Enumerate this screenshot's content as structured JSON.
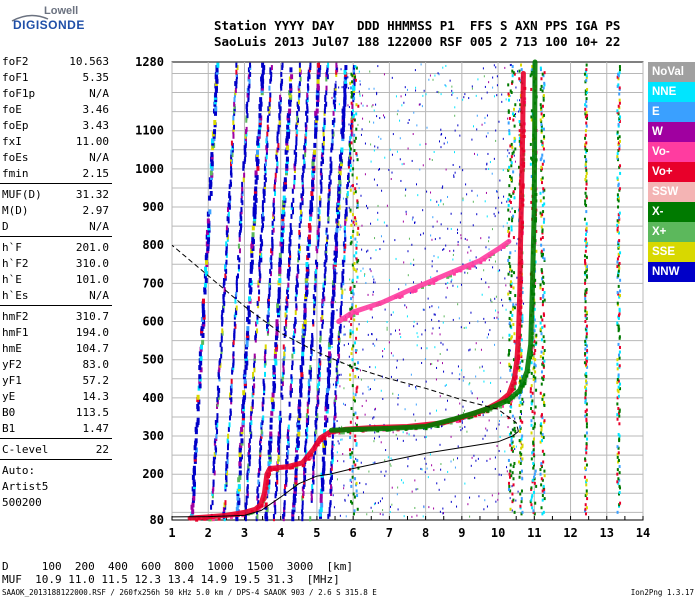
{
  "logo": {
    "line1": "Lowell",
    "line2": "DIGISONDE"
  },
  "header": {
    "line1": "Station YYYY DAY   DDD HHMMSS P1  FFS S AXN PPS IGA PS",
    "line2": "SaoLuis 2013 Jul07 188 122000 RSF 005 2 713 100 10+ 22"
  },
  "parameters": [
    {
      "group": [
        {
          "name": "foF2",
          "value": "10.563"
        },
        {
          "name": "foF1",
          "value": "5.35"
        },
        {
          "name": "foF1p",
          "value": "N/A"
        },
        {
          "name": "foE",
          "value": "3.46"
        },
        {
          "name": "foEp",
          "value": "3.43"
        },
        {
          "name": "fxI",
          "value": "11.00"
        },
        {
          "name": "foEs",
          "value": "N/A"
        },
        {
          "name": "fmin",
          "value": "2.15"
        }
      ]
    },
    {
      "group": [
        {
          "name": "MUF(D)",
          "value": "31.32"
        },
        {
          "name": "M(D)",
          "value": "2.97"
        },
        {
          "name": "D",
          "value": "N/A"
        }
      ]
    },
    {
      "group": [
        {
          "name": "h`F",
          "value": "201.0"
        },
        {
          "name": "h`F2",
          "value": "310.0"
        },
        {
          "name": "h`E",
          "value": "101.0"
        },
        {
          "name": "h`Es",
          "value": "N/A"
        }
      ]
    },
    {
      "group": [
        {
          "name": "hmF2",
          "value": "310.7"
        },
        {
          "name": "hmF1",
          "value": "194.0"
        },
        {
          "name": "hmE",
          "value": "104.7"
        },
        {
          "name": "yF2",
          "value": "83.0"
        },
        {
          "name": "yF1",
          "value": "57.2"
        },
        {
          "name": "yE",
          "value": "14.3"
        },
        {
          "name": "B0",
          "value": "113.5"
        },
        {
          "name": "B1",
          "value": "1.47"
        }
      ]
    },
    {
      "group": [
        {
          "name": "C-level",
          "value": "22"
        }
      ]
    }
  ],
  "autoscaling": {
    "line1": "Auto:",
    "line2": "Artist5",
    "line3": "500200"
  },
  "legend": [
    {
      "label": "NoVal",
      "color": "#a0a0a0"
    },
    {
      "label": "NNE",
      "color": "#00e5ff"
    },
    {
      "label": "E",
      "color": "#3aa0ff"
    },
    {
      "label": "W",
      "color": "#a000a0"
    },
    {
      "label": "Vo-",
      "color": "#ff3ca0"
    },
    {
      "label": "Vo+",
      "color": "#e8002a"
    },
    {
      "label": "SSW",
      "color": "#f4b4b4"
    },
    {
      "label": "X-",
      "color": "#007a00"
    },
    {
      "label": "X+",
      "color": "#5cb85c"
    },
    {
      "label": "SSE",
      "color": "#d8d800"
    },
    {
      "label": "NNW",
      "color": "#0000c8"
    }
  ],
  "muf_table": {
    "line1": "D     100  200  400  600  800  1000  1500  3000  [km]",
    "line2": "MUF  10.9 11.0 11.5 12.3 13.4 14.9 19.5 31.3  [MHz]"
  },
  "footer": {
    "left": "SAAOK_2013188122000.RSF / 260fx256h 50 kHz 5.0 km / DPS-4 SAAOK 903 / 2.6 S 315.8 E",
    "right": "Ion2Png 1.3.17"
  },
  "chart_data": {
    "type": "scatter",
    "title": "",
    "xlabel": "",
    "ylabel": "",
    "x_unit": "MHz",
    "y_unit": "km",
    "xlim": [
      1,
      14
    ],
    "ylim": [
      80,
      1280
    ],
    "x_ticks": [
      1,
      2,
      3,
      4,
      5,
      6,
      7,
      8,
      9,
      10,
      11,
      12,
      13,
      14
    ],
    "y_ticks": [
      80,
      200,
      300,
      400,
      500,
      600,
      700,
      800,
      900,
      1000,
      1100,
      1280
    ],
    "grid": true,
    "legend_position": "right",
    "series": [
      {
        "name": "Vo+",
        "style": "trace",
        "color": "#e8002a",
        "points": [
          [
            1.5,
            85
          ],
          [
            2,
            88
          ],
          [
            2.5,
            92
          ],
          [
            3,
            100
          ],
          [
            3.3,
            108
          ],
          [
            3.45,
            120
          ],
          [
            3.55,
            150
          ],
          [
            3.62,
            200
          ],
          [
            3.7,
            215
          ],
          [
            4.2,
            220
          ],
          [
            4.6,
            230
          ],
          [
            4.9,
            265
          ],
          [
            5.1,
            295
          ],
          [
            5.35,
            310
          ],
          [
            5.8,
            318
          ],
          [
            6.5,
            322
          ],
          [
            7.5,
            325
          ],
          [
            8.5,
            335
          ],
          [
            9.2,
            355
          ],
          [
            9.7,
            372
          ],
          [
            10.05,
            390
          ],
          [
            10.3,
            410
          ],
          [
            10.45,
            450
          ],
          [
            10.52,
            500
          ],
          [
            10.56,
            560
          ],
          [
            10.6,
            680
          ],
          [
            10.62,
            800
          ],
          [
            10.64,
            900
          ],
          [
            10.66,
            1000
          ],
          [
            10.68,
            1100
          ],
          [
            10.7,
            1250
          ]
        ]
      },
      {
        "name": "X-",
        "style": "trace",
        "color": "#007a00",
        "points": [
          [
            5.4,
            315
          ],
          [
            6.2,
            318
          ],
          [
            7,
            320
          ],
          [
            8,
            325
          ],
          [
            8.8,
            345
          ],
          [
            9.4,
            362
          ],
          [
            9.9,
            378
          ],
          [
            10.3,
            395
          ],
          [
            10.6,
            420
          ],
          [
            10.8,
            470
          ],
          [
            10.9,
            540
          ],
          [
            10.95,
            700
          ],
          [
            11,
            900
          ],
          [
            11.02,
            1280
          ]
        ]
      },
      {
        "name": "Vo-",
        "style": "trace",
        "color": "#ff3ca0",
        "points": [
          [
            5.6,
            600
          ],
          [
            6,
            625
          ],
          [
            6.8,
            650
          ],
          [
            7.5,
            680
          ],
          [
            8,
            700
          ],
          [
            8.5,
            720
          ],
          [
            9,
            740
          ],
          [
            9.5,
            760
          ],
          [
            10,
            790
          ],
          [
            10.3,
            810
          ]
        ]
      },
      {
        "name": "profile",
        "style": "line-solid",
        "color": "#000000",
        "points": [
          [
            1,
            88
          ],
          [
            2,
            89
          ],
          [
            3,
            92
          ],
          [
            3.46,
            105
          ],
          [
            4,
            140
          ],
          [
            4.5,
            175
          ],
          [
            5,
            195
          ],
          [
            5.35,
            200
          ],
          [
            6,
            215
          ],
          [
            7,
            235
          ],
          [
            8,
            255
          ],
          [
            9,
            270
          ],
          [
            10,
            285
          ],
          [
            10.4,
            300
          ],
          [
            10.56,
            312
          ]
        ]
      },
      {
        "name": "profile-topside",
        "style": "line-dashed",
        "color": "#000000",
        "points": [
          [
            10.56,
            312
          ],
          [
            10.5,
            335
          ],
          [
            10,
            370
          ],
          [
            9,
            395
          ],
          [
            8,
            425
          ],
          [
            7,
            450
          ],
          [
            6,
            480
          ],
          [
            5,
            520
          ],
          [
            4,
            570
          ],
          [
            3,
            640
          ],
          [
            2,
            720
          ],
          [
            1,
            800
          ]
        ]
      }
    ]
  }
}
